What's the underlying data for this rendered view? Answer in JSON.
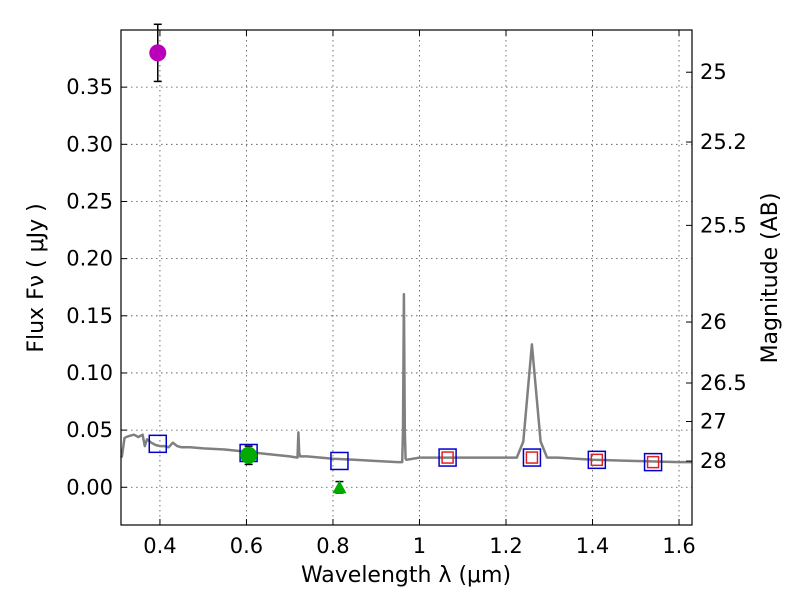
{
  "chart_data": {
    "type": "scatter",
    "xlabel": "Wavelength  λ (μm)",
    "ylabel": "Flux  Fν  ( μJy )",
    "y2label": "Magnitude (AB)",
    "xlim": [
      0.31,
      1.63
    ],
    "ylim": [
      -0.033,
      0.4
    ],
    "x_ticks": [
      0.4,
      0.6,
      0.8,
      1.0,
      1.2,
      1.4,
      1.6
    ],
    "x_tick_labels": [
      "0.4",
      "0.6",
      "0.8",
      "1",
      "1.2",
      "1.4",
      "1.6"
    ],
    "y_ticks": [
      0.0,
      0.05,
      0.1,
      0.15,
      0.2,
      0.25,
      0.3,
      0.35
    ],
    "y_tick_labels": [
      "0.00",
      "0.05",
      "0.10",
      "0.15",
      "0.20",
      "0.25",
      "0.30",
      "0.35"
    ],
    "mag_ticks": [
      {
        "label": "25",
        "mag": 25
      },
      {
        "label": "25.2",
        "mag": 25.2
      },
      {
        "label": "25.5",
        "mag": 25.5
      },
      {
        "label": "26",
        "mag": 26
      },
      {
        "label": "26.5",
        "mag": 26.5
      },
      {
        "label": "27",
        "mag": 27
      },
      {
        "label": "28",
        "mag": 28
      }
    ],
    "grid": true,
    "series": [
      {
        "name": "model SED",
        "kind": "line",
        "color": "#808080",
        "x": [
          0.31,
          0.312,
          0.318,
          0.322,
          0.33,
          0.34,
          0.35,
          0.36,
          0.365,
          0.37,
          0.38,
          0.39,
          0.4,
          0.41,
          0.42,
          0.43,
          0.44,
          0.45,
          0.47,
          0.5,
          0.55,
          0.6,
          0.65,
          0.7,
          0.718,
          0.72,
          0.722,
          0.724,
          0.74,
          0.8,
          0.85,
          0.9,
          0.95,
          0.96,
          0.962,
          0.964,
          0.966,
          0.968,
          0.97,
          1.0,
          1.05,
          1.1,
          1.15,
          1.2,
          1.225,
          1.24,
          1.26,
          1.28,
          1.295,
          1.32,
          1.4,
          1.5,
          1.6,
          1.63
        ],
        "y": [
          0.026,
          0.027,
          0.043,
          0.044,
          0.045,
          0.046,
          0.044,
          0.046,
          0.036,
          0.042,
          0.039,
          0.037,
          0.036,
          0.036,
          0.035,
          0.039,
          0.036,
          0.035,
          0.035,
          0.034,
          0.033,
          0.031,
          0.029,
          0.027,
          0.026,
          0.048,
          0.03,
          0.027,
          0.027,
          0.025,
          0.024,
          0.023,
          0.022,
          0.022,
          0.05,
          0.169,
          0.05,
          0.025,
          0.024,
          0.026,
          0.026,
          0.026,
          0.026,
          0.026,
          0.026,
          0.04,
          0.125,
          0.04,
          0.026,
          0.026,
          0.024,
          0.023,
          0.022,
          0.022
        ]
      },
      {
        "name": "model photometry",
        "kind": "open-square",
        "color": "#0000cc",
        "x": [
          0.395,
          0.605,
          0.815,
          1.065,
          1.26,
          1.41,
          1.54
        ],
        "y": [
          0.038,
          0.03,
          0.023,
          0.026,
          0.026,
          0.024,
          0.022
        ]
      },
      {
        "name": "observed photometry",
        "kind": "open-square",
        "color": "#dd2222",
        "x": [
          1.065,
          1.26,
          1.41,
          1.54
        ],
        "y": [
          0.026,
          0.026,
          0.024,
          0.022
        ]
      },
      {
        "name": "magenta point",
        "kind": "circle",
        "color": "#bb00bb",
        "x": [
          0.395
        ],
        "y": [
          0.38
        ],
        "yerr": [
          0.025
        ]
      },
      {
        "name": "green point",
        "kind": "circle",
        "color": "#00aa00",
        "x": [
          0.605
        ],
        "y": [
          0.028
        ],
        "yerr": [
          0.008
        ]
      },
      {
        "name": "green triangle",
        "kind": "triangle",
        "color": "#00aa00",
        "x": [
          0.815
        ],
        "y": [
          0.0
        ],
        "yerr": [
          0.005
        ]
      }
    ]
  }
}
